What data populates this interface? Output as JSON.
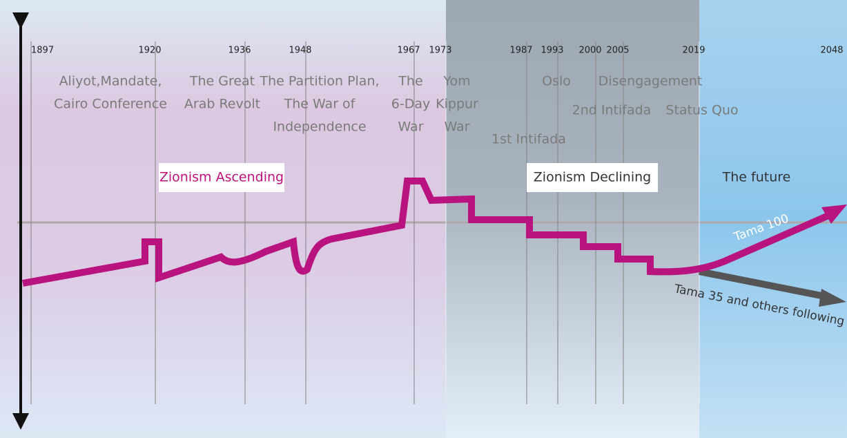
{
  "years": [
    "1897",
    "1920",
    "1936",
    "1948",
    "1967",
    "1973",
    "1987",
    "1993",
    "2000",
    "2005",
    "2019",
    "2048"
  ],
  "events": [
    {
      "lines": [
        "Aliyot,Mandate,",
        "Cairo Conference"
      ]
    },
    {
      "lines": [
        "The Great",
        "Arab Revolt"
      ]
    },
    {
      "lines": [
        "The Partition Plan,",
        "The War of",
        "Independence"
      ]
    },
    {
      "lines": [
        "The",
        "6-Day",
        "War"
      ]
    },
    {
      "lines": [
        "Yom",
        "Kippur",
        "War"
      ]
    },
    {
      "lines": [
        "1st Intifada"
      ]
    },
    {
      "lines": [
        "Oslo"
      ]
    },
    {
      "lines": [
        "Disengagement"
      ]
    },
    {
      "lines": [
        "2nd Intifada"
      ]
    },
    {
      "lines": [
        "Status Quo"
      ]
    }
  ],
  "eras": {
    "ascending": "Zionism Ascending",
    "declining": "Zionism Declining",
    "future": "The future"
  },
  "paths": {
    "tama100": "Tama 100",
    "tama35": "Tama 35 and others following"
  }
}
